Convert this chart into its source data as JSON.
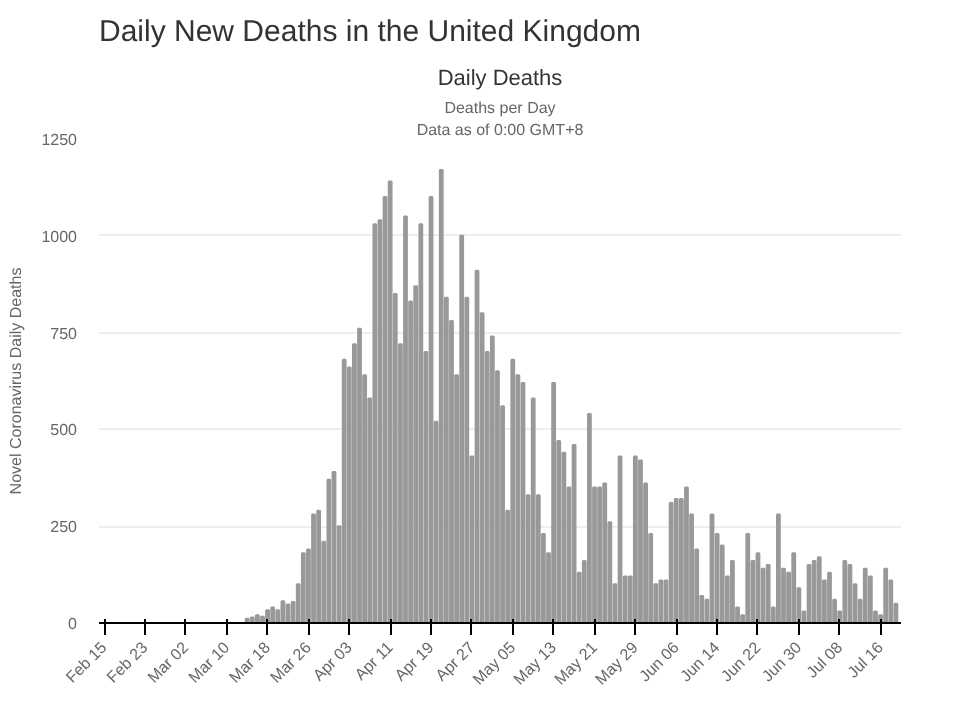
{
  "chart_data": {
    "type": "bar",
    "title": "Daily New Deaths in the United Kingdom",
    "subtitle": "Daily Deaths",
    "annotations": [
      "Deaths per Day",
      "Data as of 0:00 GMT+8"
    ],
    "ylabel": "Novel Coronavirus Daily Deaths",
    "categories": [
      "Feb 15",
      null,
      null,
      null,
      null,
      null,
      null,
      null,
      "Feb 23",
      null,
      null,
      null,
      null,
      null,
      null,
      null,
      "Mar 02",
      null,
      null,
      null,
      null,
      null,
      null,
      null,
      "Mar 10",
      null,
      null,
      null,
      null,
      null,
      null,
      null,
      "Mar 18",
      null,
      null,
      null,
      null,
      null,
      null,
      null,
      "Mar 26",
      null,
      null,
      null,
      null,
      null,
      null,
      null,
      "Apr 03",
      null,
      null,
      null,
      null,
      null,
      null,
      null,
      "Apr 11",
      null,
      null,
      null,
      null,
      null,
      null,
      null,
      "Apr 19",
      null,
      null,
      null,
      null,
      null,
      null,
      null,
      "Apr 27",
      null,
      null,
      null,
      null,
      null,
      null,
      null,
      "May 05",
      null,
      null,
      null,
      null,
      null,
      null,
      null,
      "May 13",
      null,
      null,
      null,
      null,
      null,
      null,
      null,
      "May 21",
      null,
      null,
      null,
      null,
      null,
      null,
      null,
      "May 29",
      null,
      null,
      null,
      null,
      null,
      null,
      null,
      "Jun 06",
      null,
      null,
      null,
      null,
      null,
      null,
      null,
      "Jun 14",
      null,
      null,
      null,
      null,
      null,
      null,
      null,
      "Jun 22",
      null,
      null,
      null,
      null,
      null,
      null,
      null,
      "Jun 30",
      null,
      null,
      null,
      null,
      null,
      null,
      null,
      "Jul 08",
      null,
      null,
      null,
      null,
      null,
      null,
      null,
      "Jul 16",
      null,
      null,
      null
    ],
    "values": [
      0,
      0,
      0,
      0,
      0,
      0,
      0,
      0,
      0,
      0,
      0,
      0,
      0,
      0,
      0,
      0,
      0,
      0,
      0,
      0,
      0,
      0,
      0,
      0,
      0,
      0,
      0,
      0,
      11,
      14,
      20,
      16,
      33,
      40,
      33,
      56,
      48,
      54,
      100,
      180,
      190,
      280,
      290,
      210,
      370,
      390,
      250,
      680,
      660,
      720,
      760,
      640,
      580,
      1030,
      1040,
      1100,
      1140,
      850,
      720,
      1050,
      830,
      870,
      1030,
      700,
      1100,
      520,
      1170,
      840,
      780,
      640,
      1000,
      840,
      430,
      910,
      800,
      700,
      740,
      650,
      560,
      290,
      680,
      640,
      620,
      330,
      580,
      330,
      230,
      180,
      620,
      470,
      440,
      350,
      460,
      130,
      160,
      540,
      350,
      350,
      360,
      260,
      100,
      430,
      120,
      120,
      430,
      420,
      360,
      230,
      100,
      110,
      110,
      310,
      320,
      320,
      350,
      280,
      190,
      70,
      60,
      280,
      230,
      200,
      120,
      160,
      40,
      20,
      230,
      160,
      180,
      140,
      150,
      40,
      280,
      140,
      130,
      180,
      90,
      30,
      150,
      160,
      170,
      110,
      130,
      60,
      30,
      160,
      150,
      100,
      60,
      140,
      120,
      30,
      20,
      140,
      110,
      50
    ],
    "color": "#999999",
    "ylim": [
      0,
      1250
    ],
    "yticks": [
      0,
      250,
      500,
      750,
      1000,
      1250
    ],
    "grid": "y"
  }
}
